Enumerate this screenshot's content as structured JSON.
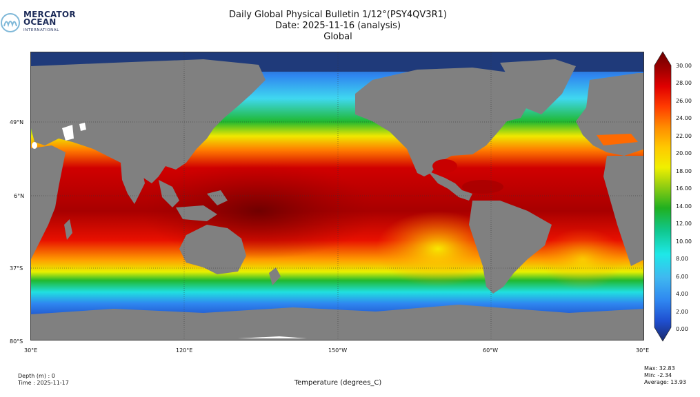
{
  "logo": {
    "line1": "MERCATOR",
    "line2": "OCEAN",
    "line3": "INTERNATIONAL"
  },
  "title": {
    "line1": "Daily Global Physical Bulletin 1/12°(PSY4QV3R1)",
    "line2": "Date: 2025-11-16 (analysis)",
    "line3": "Global"
  },
  "map": {
    "lat_labels": [
      "49°N",
      "6°N",
      "37°S",
      "80°S"
    ],
    "lon_labels": [
      "30°E",
      "120°E",
      "150°W",
      "60°W",
      "30°E"
    ],
    "land_color": "#808080",
    "ice_color": "#ffffff"
  },
  "colorbar": {
    "ticks": [
      "30.00",
      "28.00",
      "26.00",
      "24.00",
      "22.00",
      "20.00",
      "18.00",
      "16.00",
      "14.00",
      "12.00",
      "10.00",
      "8.00",
      "6.00",
      "4.00",
      "2.00",
      "0.00"
    ],
    "colors": [
      "#1a2a6c",
      "#1f4fd0",
      "#2f86f0",
      "#3fb8f0",
      "#1ee8e8",
      "#10c890",
      "#20b020",
      "#9ad010",
      "#f0f000",
      "#ffc800",
      "#ff8c00",
      "#ff3c00",
      "#e00000",
      "#a00000",
      "#6a0000"
    ]
  },
  "info_left": {
    "depth": "Depth (m) : 0",
    "time": "Time : 2025-11-17"
  },
  "info_right": {
    "max": "Max: 32.83",
    "min": "Min: -2.34",
    "average": "Average: 13.93"
  },
  "xlabel": "Temperature (degrees_C)"
}
